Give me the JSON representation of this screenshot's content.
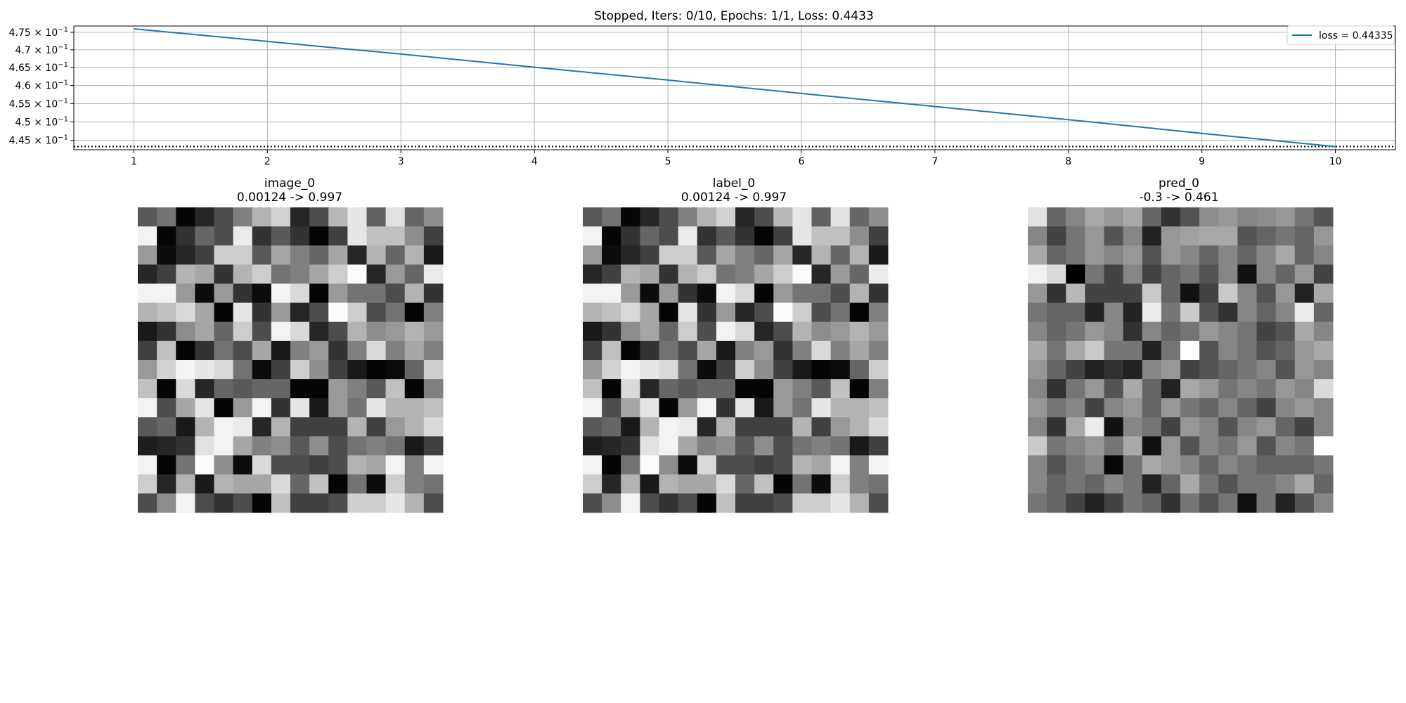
{
  "chart_data": [
    {
      "type": "line",
      "title": "Stopped, Iters: 0/10, Epochs: 1/1, Loss: 0.4433",
      "xlabel": "",
      "ylabel": "",
      "x": [
        1,
        2,
        3,
        4,
        5,
        6,
        7,
        8,
        9,
        10
      ],
      "series": [
        {
          "name": "loss = 0.44335",
          "color": "#1f77b4",
          "values": [
            0.476,
            0.4724,
            0.4688,
            0.4651,
            0.4615,
            0.4578,
            0.4542,
            0.4506,
            0.4469,
            0.44335
          ]
        }
      ],
      "hline": {
        "value": 0.44335,
        "style": "dotted",
        "color": "#000000"
      },
      "xlim": [
        0.55,
        10.45
      ],
      "ylim": [
        0.4425,
        0.4768
      ],
      "yscale": "log",
      "xticks": [
        "1",
        "2",
        "3",
        "4",
        "5",
        "6",
        "7",
        "8",
        "9",
        "10"
      ],
      "yticks": [
        {
          "value": 0.45,
          "mantissa": "4.5"
        },
        {
          "value": 0.455,
          "mantissa": "4.55"
        },
        {
          "value": 0.46,
          "mantissa": "4.6"
        },
        {
          "value": 0.465,
          "mantissa": "4.65"
        },
        {
          "value": 0.47,
          "mantissa": "4.7"
        },
        {
          "value": 0.475,
          "mantissa": "4.75"
        },
        {
          "value": 0.445,
          "mantissa": "4.45"
        }
      ],
      "ytick_base": "× 10",
      "ytick_exponent": "−1",
      "grid": true,
      "legend_position": "top-right"
    },
    {
      "type": "heatmap",
      "title": "image_0",
      "subtitle": "0.00124 -> 0.997",
      "colormap": "gray",
      "vmin": 0.00124,
      "vmax": 0.997,
      "values": [
        [
          0.35,
          0.45,
          0.02,
          0.15,
          0.3,
          0.5,
          0.7,
          0.82,
          0.15,
          0.3,
          0.72,
          0.9,
          0.38,
          0.88,
          0.4,
          0.55
        ],
        [
          0.95,
          0.02,
          0.2,
          0.4,
          0.3,
          0.92,
          0.2,
          0.35,
          0.2,
          0.02,
          0.25,
          0.9,
          0.75,
          0.75,
          0.55,
          0.25
        ],
        [
          0.6,
          0.05,
          0.15,
          0.25,
          0.8,
          0.8,
          0.35,
          0.65,
          0.5,
          0.4,
          0.65,
          0.15,
          0.7,
          0.4,
          0.7,
          0.1
        ],
        [
          0.15,
          0.25,
          0.7,
          0.65,
          0.2,
          0.7,
          0.8,
          0.45,
          0.5,
          0.65,
          0.8,
          0.98,
          0.15,
          0.6,
          0.4,
          0.92
        ],
        [
          0.95,
          0.95,
          0.6,
          0.05,
          0.6,
          0.2,
          0.05,
          0.95,
          0.85,
          0.02,
          0.6,
          0.45,
          0.45,
          0.3,
          0.7,
          0.2
        ],
        [
          0.7,
          0.75,
          0.85,
          0.65,
          0.02,
          0.9,
          0.2,
          0.6,
          0.15,
          0.3,
          0.98,
          0.8,
          0.3,
          0.45,
          0.02,
          0.5
        ],
        [
          0.1,
          0.2,
          0.55,
          0.65,
          0.4,
          0.8,
          0.3,
          0.95,
          0.85,
          0.15,
          0.3,
          0.7,
          0.55,
          0.6,
          0.7,
          0.6
        ],
        [
          0.25,
          0.75,
          0.02,
          0.2,
          0.45,
          0.3,
          0.65,
          0.1,
          0.5,
          0.6,
          0.2,
          0.5,
          0.85,
          0.5,
          0.65,
          0.5
        ],
        [
          0.6,
          0.82,
          0.95,
          0.9,
          0.85,
          0.45,
          0.05,
          0.25,
          0.8,
          0.55,
          0.25,
          0.1,
          0.02,
          0.05,
          0.4,
          0.8
        ],
        [
          0.75,
          0.02,
          0.85,
          0.15,
          0.4,
          0.35,
          0.4,
          0.4,
          0.02,
          0.02,
          0.6,
          0.5,
          0.35,
          0.75,
          0.02,
          0.5
        ],
        [
          0.95,
          0.3,
          0.65,
          0.9,
          0.02,
          0.6,
          0.95,
          0.2,
          0.9,
          0.1,
          0.6,
          0.45,
          0.9,
          0.7,
          0.7,
          0.75
        ],
        [
          0.35,
          0.4,
          0.1,
          0.7,
          0.95,
          0.92,
          0.15,
          0.7,
          0.25,
          0.25,
          0.25,
          0.7,
          0.25,
          0.6,
          0.7,
          0.85
        ],
        [
          0.12,
          0.15,
          0.2,
          0.88,
          0.95,
          0.65,
          0.5,
          0.55,
          0.35,
          0.55,
          0.3,
          0.45,
          0.5,
          0.45,
          0.1,
          0.25
        ],
        [
          0.95,
          0.02,
          0.45,
          0.98,
          0.55,
          0.05,
          0.85,
          0.3,
          0.3,
          0.25,
          0.3,
          0.7,
          0.65,
          0.95,
          0.5,
          0.95
        ],
        [
          0.8,
          0.15,
          0.7,
          0.1,
          0.7,
          0.65,
          0.65,
          0.85,
          0.4,
          0.75,
          0.02,
          0.45,
          0.05,
          0.8,
          0.5,
          0.45
        ],
        [
          0.3,
          0.55,
          0.95,
          0.3,
          0.2,
          0.3,
          0.02,
          0.75,
          0.25,
          0.25,
          0.3,
          0.8,
          0.8,
          0.9,
          0.7,
          0.3
        ]
      ]
    },
    {
      "type": "heatmap",
      "title": "label_0",
      "subtitle": "0.00124 -> 0.997",
      "colormap": "gray",
      "vmin": 0.00124,
      "vmax": 0.997,
      "values": [
        [
          0.35,
          0.45,
          0.02,
          0.15,
          0.3,
          0.5,
          0.7,
          0.82,
          0.15,
          0.3,
          0.72,
          0.9,
          0.38,
          0.88,
          0.4,
          0.55
        ],
        [
          0.95,
          0.02,
          0.2,
          0.4,
          0.3,
          0.92,
          0.2,
          0.35,
          0.2,
          0.02,
          0.25,
          0.9,
          0.75,
          0.75,
          0.55,
          0.25
        ],
        [
          0.6,
          0.05,
          0.15,
          0.25,
          0.8,
          0.8,
          0.35,
          0.65,
          0.5,
          0.4,
          0.65,
          0.15,
          0.7,
          0.4,
          0.7,
          0.1
        ],
        [
          0.15,
          0.25,
          0.7,
          0.65,
          0.2,
          0.7,
          0.8,
          0.45,
          0.5,
          0.65,
          0.8,
          0.98,
          0.15,
          0.6,
          0.4,
          0.92
        ],
        [
          0.95,
          0.95,
          0.6,
          0.05,
          0.6,
          0.2,
          0.05,
          0.95,
          0.85,
          0.02,
          0.6,
          0.45,
          0.45,
          0.3,
          0.7,
          0.2
        ],
        [
          0.7,
          0.75,
          0.85,
          0.65,
          0.02,
          0.9,
          0.2,
          0.6,
          0.15,
          0.3,
          0.98,
          0.8,
          0.3,
          0.45,
          0.02,
          0.5
        ],
        [
          0.1,
          0.2,
          0.55,
          0.65,
          0.4,
          0.8,
          0.3,
          0.95,
          0.85,
          0.15,
          0.3,
          0.7,
          0.55,
          0.6,
          0.7,
          0.6
        ],
        [
          0.25,
          0.75,
          0.02,
          0.2,
          0.45,
          0.3,
          0.65,
          0.1,
          0.5,
          0.6,
          0.2,
          0.5,
          0.85,
          0.5,
          0.65,
          0.5
        ],
        [
          0.6,
          0.82,
          0.95,
          0.9,
          0.85,
          0.45,
          0.05,
          0.25,
          0.8,
          0.55,
          0.25,
          0.1,
          0.02,
          0.05,
          0.4,
          0.8
        ],
        [
          0.75,
          0.02,
          0.85,
          0.15,
          0.4,
          0.35,
          0.4,
          0.4,
          0.02,
          0.02,
          0.6,
          0.5,
          0.35,
          0.75,
          0.02,
          0.5
        ],
        [
          0.95,
          0.3,
          0.65,
          0.9,
          0.02,
          0.6,
          0.95,
          0.2,
          0.9,
          0.1,
          0.6,
          0.45,
          0.9,
          0.7,
          0.7,
          0.75
        ],
        [
          0.35,
          0.4,
          0.1,
          0.7,
          0.95,
          0.92,
          0.15,
          0.7,
          0.25,
          0.25,
          0.25,
          0.7,
          0.25,
          0.6,
          0.7,
          0.85
        ],
        [
          0.12,
          0.15,
          0.2,
          0.88,
          0.95,
          0.65,
          0.5,
          0.55,
          0.35,
          0.55,
          0.3,
          0.45,
          0.5,
          0.45,
          0.1,
          0.25
        ],
        [
          0.95,
          0.02,
          0.45,
          0.98,
          0.55,
          0.05,
          0.85,
          0.3,
          0.3,
          0.25,
          0.3,
          0.7,
          0.65,
          0.95,
          0.5,
          0.95
        ],
        [
          0.8,
          0.15,
          0.7,
          0.1,
          0.7,
          0.65,
          0.65,
          0.85,
          0.4,
          0.75,
          0.02,
          0.45,
          0.05,
          0.8,
          0.5,
          0.45
        ],
        [
          0.3,
          0.55,
          0.95,
          0.3,
          0.2,
          0.3,
          0.02,
          0.75,
          0.25,
          0.25,
          0.3,
          0.8,
          0.8,
          0.9,
          0.7,
          0.3
        ]
      ]
    },
    {
      "type": "heatmap",
      "title": "pred_0",
      "subtitle": "-0.3 -> 0.461",
      "colormap": "gray",
      "vmin": -0.3,
      "vmax": 0.461,
      "values": [
        [
          0.37,
          0.0,
          0.1,
          0.2,
          0.15,
          0.2,
          0.0,
          -0.15,
          -0.05,
          0.12,
          0.15,
          0.1,
          0.12,
          0.15,
          0.05,
          -0.05
        ],
        [
          0.1,
          -0.1,
          0.05,
          0.15,
          -0.05,
          0.1,
          -0.2,
          0.15,
          0.18,
          0.2,
          0.2,
          -0.05,
          0.0,
          0.05,
          0.0,
          0.15
        ],
        [
          0.2,
          0.0,
          0.05,
          0.15,
          0.1,
          0.15,
          -0.05,
          0.15,
          0.1,
          0.0,
          0.1,
          0.0,
          0.1,
          0.2,
          0.0,
          0.1
        ],
        [
          0.42,
          0.35,
          -0.3,
          0.05,
          -0.1,
          0.1,
          -0.1,
          0.0,
          0.05,
          -0.05,
          0.1,
          -0.25,
          0.1,
          0.0,
          0.15,
          -0.1
        ],
        [
          0.15,
          -0.15,
          0.25,
          -0.1,
          -0.1,
          -0.1,
          0.3,
          0.0,
          -0.25,
          -0.1,
          0.3,
          0.1,
          -0.05,
          0.15,
          -0.2,
          0.2
        ],
        [
          0.05,
          0.0,
          0.0,
          -0.2,
          0.1,
          -0.2,
          0.4,
          0.05,
          0.3,
          -0.05,
          -0.15,
          0.1,
          0.0,
          0.1,
          0.4,
          0.0
        ],
        [
          0.1,
          0.0,
          0.05,
          0.15,
          0.1,
          -0.15,
          0.1,
          0.0,
          0.05,
          0.15,
          0.1,
          0.05,
          -0.1,
          -0.05,
          0.2,
          0.1
        ],
        [
          0.2,
          0.05,
          0.2,
          0.3,
          0.05,
          0.05,
          -0.2,
          0.05,
          0.46,
          -0.05,
          0.1,
          0.05,
          -0.05,
          0.0,
          0.15,
          0.2
        ],
        [
          0.15,
          0.0,
          -0.1,
          -0.2,
          -0.15,
          -0.2,
          0.1,
          0.15,
          -0.1,
          -0.05,
          0.0,
          0.05,
          0.1,
          -0.05,
          0.15,
          0.1
        ],
        [
          0.1,
          -0.15,
          0.05,
          0.15,
          -0.05,
          0.2,
          0.0,
          -0.2,
          0.2,
          0.15,
          0.05,
          0.1,
          0.05,
          0.15,
          0.1,
          0.35
        ],
        [
          0.15,
          0.05,
          0.1,
          -0.1,
          0.1,
          0.15,
          0.0,
          0.15,
          0.05,
          0.0,
          0.1,
          0.0,
          -0.1,
          0.1,
          0.15,
          0.1
        ],
        [
          0.1,
          -0.15,
          0.2,
          0.4,
          -0.25,
          0.1,
          0.05,
          -0.1,
          0.15,
          0.1,
          -0.05,
          0.1,
          0.15,
          0.0,
          -0.1,
          0.1
        ],
        [
          0.3,
          0.05,
          0.1,
          0.15,
          0.05,
          0.2,
          -0.25,
          0.15,
          -0.05,
          0.1,
          0.05,
          0.15,
          -0.05,
          0.1,
          0.05,
          0.461
        ],
        [
          0.1,
          -0.05,
          0.05,
          0.1,
          -0.28,
          0.05,
          0.2,
          0.15,
          0.1,
          0.0,
          0.1,
          0.05,
          0.0,
          0.0,
          0.0,
          0.05
        ],
        [
          0.1,
          0.0,
          0.05,
          0.0,
          0.1,
          0.05,
          -0.2,
          0.0,
          0.2,
          0.05,
          -0.05,
          0.05,
          0.05,
          0.1,
          0.2,
          0.0
        ],
        [
          0.05,
          0.0,
          -0.1,
          -0.2,
          -0.1,
          0.05,
          0.0,
          -0.15,
          0.05,
          -0.05,
          0.05,
          -0.25,
          0.05,
          -0.2,
          -0.05,
          0.1
        ]
      ]
    }
  ]
}
